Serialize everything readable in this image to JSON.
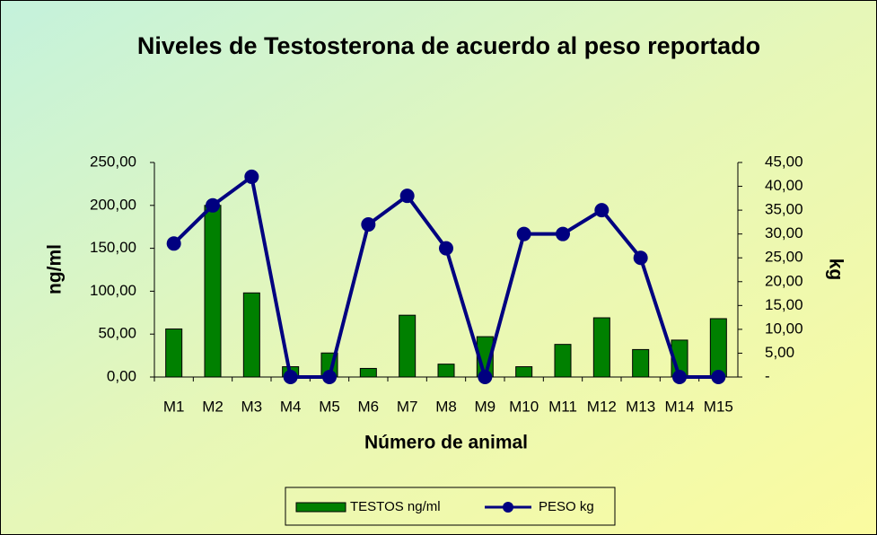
{
  "chart_data": {
    "type": "bar_line",
    "title": "Niveles de Testosterona de acuerdo al peso reportado",
    "x_label": "Número de animal",
    "y_label": "ng/ml",
    "y2_label": "kg",
    "categories": [
      "M1",
      "M2",
      "M3",
      "M4",
      "M5",
      "M6",
      "M7",
      "M8",
      "M9",
      "M10",
      "M11",
      "M12",
      "M13",
      "M14",
      "M15"
    ],
    "series": [
      {
        "name": "TESTOS ng/ml",
        "type": "bar",
        "color": "#008000",
        "values": [
          56,
          200,
          98,
          12,
          28,
          10,
          72,
          15,
          47,
          12,
          38,
          69,
          32,
          43,
          68
        ]
      },
      {
        "name": "PESO kg",
        "type": "line",
        "axis": "y2",
        "color": "#000080",
        "values": [
          28,
          36,
          42,
          0,
          0,
          32,
          38,
          27,
          0,
          30,
          30,
          35,
          25,
          0,
          0
        ]
      }
    ],
    "ylim": [
      0,
      250
    ],
    "yticks": [
      {
        "value": 0,
        "label": "0,00"
      },
      {
        "value": 50,
        "label": "50,00"
      },
      {
        "value": 100,
        "label": "100,00"
      },
      {
        "value": 150,
        "label": "150,00"
      },
      {
        "value": 200,
        "label": "200,00"
      },
      {
        "value": 250,
        "label": "250,00"
      }
    ],
    "y2lim": [
      0,
      45
    ],
    "y2ticks": [
      {
        "value": 0,
        "label": "-"
      },
      {
        "value": 5,
        "label": "5,00"
      },
      {
        "value": 10,
        "label": "10,00"
      },
      {
        "value": 15,
        "label": "15,00"
      },
      {
        "value": 20,
        "label": "20,00"
      },
      {
        "value": 25,
        "label": "25,00"
      },
      {
        "value": 30,
        "label": "30,00"
      },
      {
        "value": 35,
        "label": "35,00"
      },
      {
        "value": 40,
        "label": "40,00"
      },
      {
        "value": 45,
        "label": "45,00"
      }
    ],
    "grid": false,
    "legend": "bottom"
  }
}
